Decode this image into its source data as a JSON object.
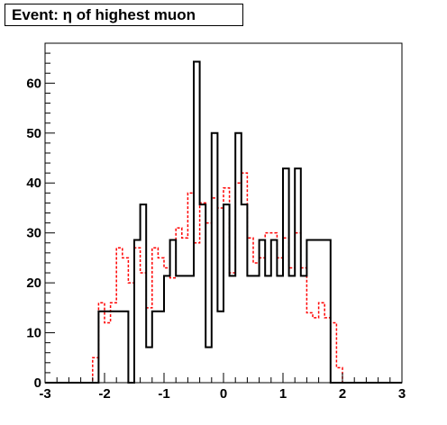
{
  "chart_data": {
    "type": "histogram",
    "title": "Event: η of highest muon",
    "xlabel": "",
    "ylabel": "",
    "xlim": [
      -3,
      3
    ],
    "ylim": [
      0,
      68
    ],
    "x_ticks": [
      -3,
      -2,
      -1,
      0,
      1,
      2,
      3
    ],
    "x_tick_labels": [
      "-3",
      "-2",
      "-1",
      "0",
      "1",
      "2",
      "3"
    ],
    "y_ticks": [
      0,
      10,
      20,
      30,
      40,
      50,
      60
    ],
    "y_tick_labels": [
      "0",
      "10",
      "20",
      "30",
      "40",
      "50",
      "60"
    ],
    "bins": {
      "low": -3,
      "width": 0.1,
      "count": 60
    },
    "series": [
      {
        "style": "solid",
        "color": "#000000",
        "values": [
          0,
          0,
          0,
          0,
          0,
          0,
          0,
          0,
          0,
          14.3,
          14.3,
          14.3,
          14.3,
          14.3,
          0,
          28.6,
          35.7,
          7.1,
          14.3,
          14.3,
          21.4,
          28.6,
          21.4,
          21.4,
          21.4,
          64.3,
          35.7,
          7.1,
          50.0,
          14.3,
          35.7,
          21.4,
          50.0,
          35.7,
          21.4,
          21.4,
          28.6,
          21.4,
          28.6,
          21.4,
          42.9,
          21.4,
          42.9,
          21.4,
          28.6,
          28.6,
          28.6,
          28.6,
          0,
          0,
          0,
          0,
          0,
          0,
          0,
          0,
          0,
          0,
          0,
          0
        ]
      },
      {
        "style": "dashed",
        "color": "#ff0000",
        "values": [
          0,
          0,
          0,
          0,
          0,
          0,
          0,
          0,
          5.0,
          16.0,
          12.0,
          16.0,
          27.0,
          25.0,
          20.0,
          27.0,
          22.0,
          15.0,
          27.0,
          25.0,
          23.0,
          21.0,
          31.0,
          29.0,
          38.0,
          28.0,
          36.0,
          32.0,
          37.0,
          35.0,
          39.0,
          22.0,
          40.0,
          42.0,
          29.0,
          24.0,
          25.0,
          30.0,
          30.0,
          25.0,
          29.0,
          23.0,
          30.0,
          23.0,
          14.0,
          13.0,
          16.0,
          13.0,
          12.0,
          3.0,
          0,
          0,
          0,
          0,
          0,
          0,
          0,
          0,
          0,
          0
        ]
      }
    ]
  }
}
